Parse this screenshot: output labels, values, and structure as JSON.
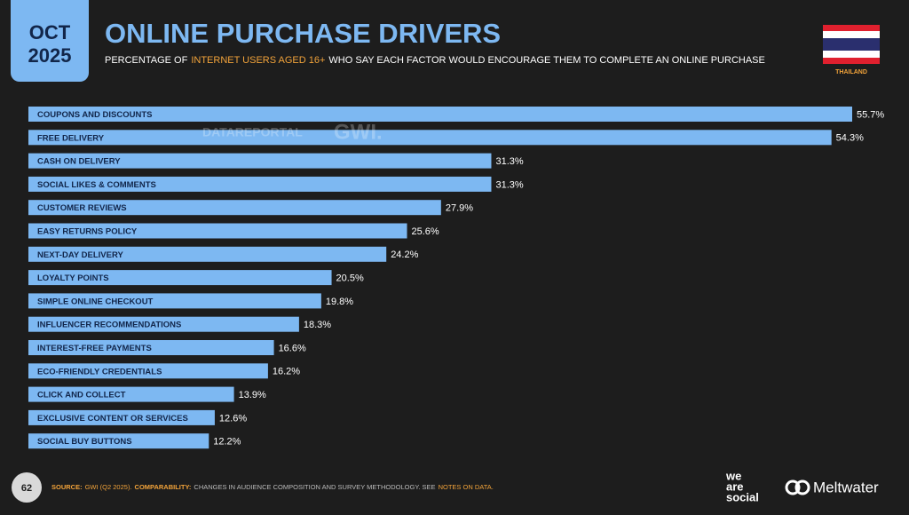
{
  "header": {
    "month": "OCT",
    "year": "2025",
    "country": "THAILAND",
    "watermark": [
      "DATAREPORTAL",
      "GWI."
    ]
  },
  "chart_data": {
    "type": "bar",
    "orientation": "horizontal",
    "title": "ONLINE PURCHASE DRIVERS",
    "subtitle": [
      "PERCENTAGE OF",
      "INTERNET USERS AGED 16+",
      "WHO SAY EACH FACTOR WOULD ENCOURAGE THEM TO COMPLETE AN ONLINE PURCHASE"
    ],
    "categories": [
      "COUPONS AND DISCOUNTS",
      "FREE DELIVERY",
      "CASH ON DELIVERY",
      "SOCIAL LIKES & COMMENTS",
      "CUSTOMER REVIEWS",
      "EASY RETURNS POLICY",
      "NEXT-DAY DELIVERY",
      "LOYALTY POINTS",
      "SIMPLE ONLINE CHECKOUT",
      "INFLUENCER RECOMMENDATIONS",
      "INTEREST-FREE PAYMENTS",
      "ECO-FRIENDLY CREDENTIALS",
      "CLICK AND COLLECT",
      "EXCLUSIVE CONTENT OR SERVICES",
      "SOCIAL BUY BUTTONS"
    ],
    "values": [
      55.7,
      54.3,
      31.3,
      31.3,
      27.9,
      25.6,
      24.2,
      20.5,
      19.8,
      18.3,
      16.6,
      16.2,
      13.9,
      12.6,
      12.2
    ],
    "value_labels": [
      "55.7%",
      "54.3%",
      "31.3%",
      "31.3%",
      "27.9%",
      "25.6%",
      "24.2%",
      "20.5%",
      "19.8%",
      "18.3%",
      "16.6%",
      "16.2%",
      "13.9%",
      "12.6%",
      "12.2%"
    ],
    "color": "#7db8f2"
  },
  "footer": {
    "page": "62",
    "source_label": "SOURCE:",
    "source": "GWI (Q2 2025).",
    "comparability_label": "COMPARABILITY:",
    "comparability": "CHANGES IN AUDIENCE COMPOSITION AND SURVEY METHODOLOGY. SEE",
    "notes_link": "NOTES ON DATA.",
    "logo_1": [
      "we",
      "are",
      "social"
    ],
    "logo_2": "Meltwater"
  }
}
